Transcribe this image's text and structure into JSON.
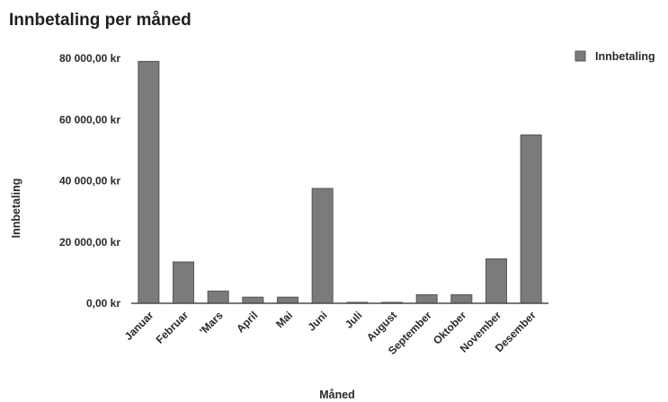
{
  "chart_data": {
    "type": "bar",
    "title": "Innbetaling per måned",
    "xlabel": "Måned",
    "ylabel": "Innbetaling",
    "categories": [
      "Januar",
      "Februar",
      "'Mars",
      "April",
      "Mai",
      "Juni",
      "Juli",
      "August",
      "September",
      "Oktober",
      "November",
      "Desember"
    ],
    "series": [
      {
        "name": "Innbetaling",
        "values": [
          79000,
          13500,
          4000,
          2000,
          2000,
          37500,
          300,
          300,
          2800,
          2800,
          14500,
          55000
        ]
      }
    ],
    "ylim": [
      0,
      80000
    ],
    "yticks": [
      0,
      20000,
      40000,
      60000,
      80000
    ],
    "ytick_labels": [
      "0,00 kr",
      "20 000,00 kr",
      "40 000,00 kr",
      "60 000,00 kr",
      "80 000,00 kr"
    ],
    "grid": false,
    "legend": "top-right",
    "colors": {
      "bar": "#7b7b7b",
      "bar_edge": "#555555"
    }
  }
}
